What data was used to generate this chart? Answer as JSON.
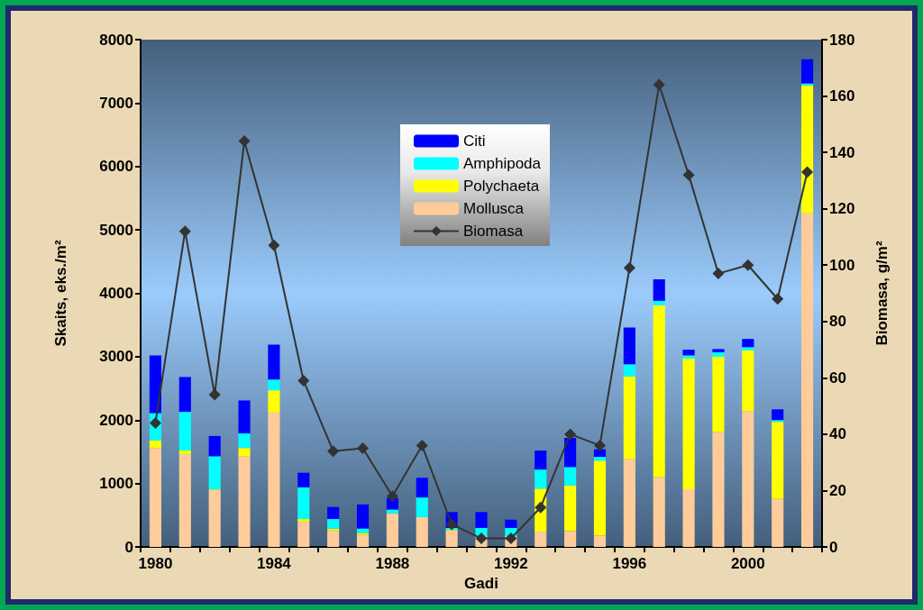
{
  "chart_data": {
    "type": "bar",
    "xlabel": "Gadi",
    "ylabel": "Skaits, eks./m²",
    "y2label": "Biomasa, g/m²",
    "categories": [
      "1980",
      null,
      null,
      null,
      "1984",
      null,
      null,
      null,
      "1988",
      null,
      null,
      null,
      "1992",
      null,
      null,
      null,
      "1996",
      null,
      null,
      null,
      "2000",
      null,
      null
    ],
    "stacked": true,
    "legend": "top",
    "grid": false,
    "marker": "diamond",
    "ylim": [
      0,
      8000
    ],
    "yticks": [
      0,
      1000,
      2000,
      3000,
      4000,
      5000,
      6000,
      7000,
      8000
    ],
    "y2lim": [
      0,
      180
    ],
    "y2ticks": [
      0,
      20,
      40,
      60,
      80,
      100,
      120,
      140,
      160,
      180
    ],
    "series": [
      {
        "name": "Mollusca",
        "color": "#ffcc99",
        "values": [
          1560,
          1460,
          900,
          1430,
          2120,
          400,
          260,
          190,
          530,
          470,
          260,
          170,
          170,
          240,
          250,
          180,
          1390,
          1100,
          910,
          1810,
          2140,
          760,
          5260
        ]
      },
      {
        "name": "Polychaeta",
        "color": "#ffff00",
        "values": [
          120,
          60,
          10,
          130,
          350,
          40,
          30,
          30,
          0,
          0,
          10,
          0,
          0,
          680,
          720,
          1180,
          1300,
          2710,
          2060,
          1190,
          960,
          1210,
          2020
        ]
      },
      {
        "name": "Amphipoda",
        "color": "#00ffff",
        "values": [
          430,
          610,
          520,
          230,
          170,
          500,
          150,
          70,
          60,
          310,
          30,
          130,
          130,
          300,
          290,
          60,
          190,
          70,
          50,
          70,
          50,
          30,
          30
        ]
      },
      {
        "name": "Citi",
        "color": "#0000ff",
        "values": [
          910,
          550,
          320,
          520,
          550,
          230,
          190,
          380,
          180,
          310,
          250,
          250,
          130,
          300,
          460,
          120,
          580,
          340,
          90,
          50,
          130,
          170,
          380
        ]
      },
      {
        "name": "Biomasa",
        "type": "line",
        "axis": "y2",
        "color": "#333333",
        "values": [
          44,
          112,
          54,
          144,
          107,
          59,
          34,
          35,
          18,
          36,
          8,
          3,
          3,
          14,
          40,
          36,
          99,
          164,
          132,
          97,
          100,
          88,
          133
        ]
      }
    ]
  }
}
